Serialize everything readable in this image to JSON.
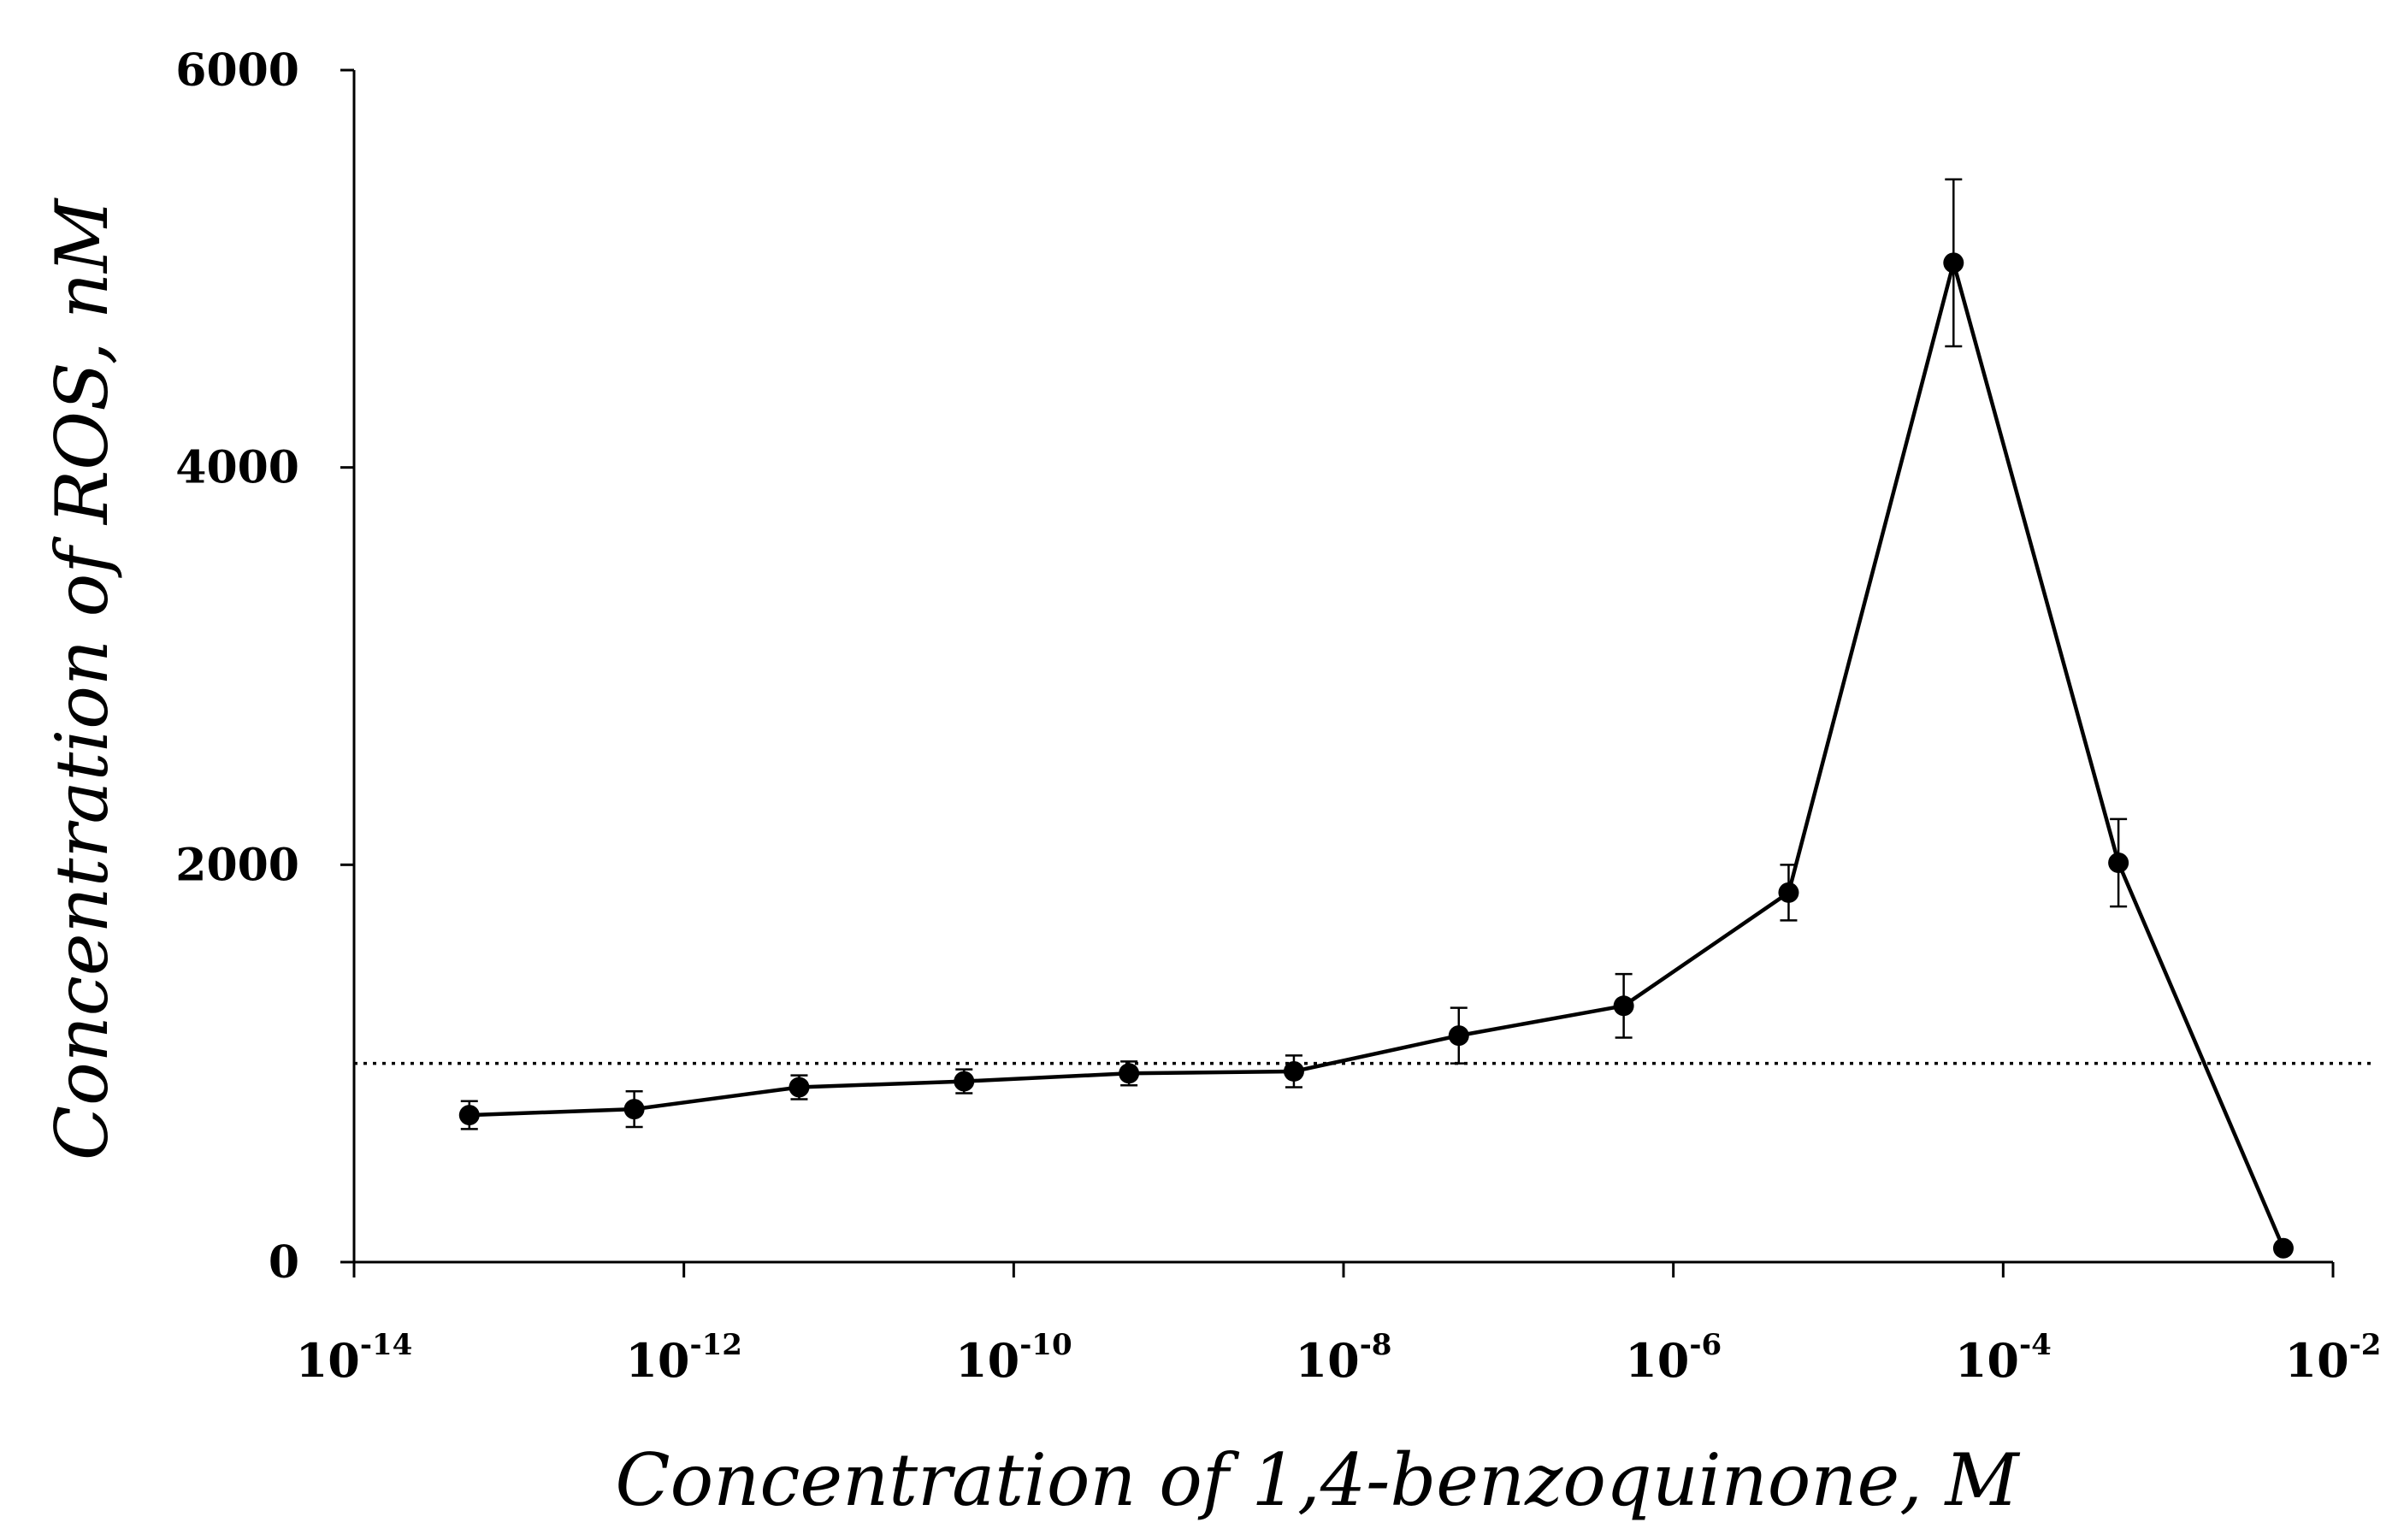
{
  "chart_data": {
    "type": "line",
    "title": "",
    "xlabel": "Concentration of 1,4-benzoquinone, M",
    "ylabel": "Concentration of ROS, nM",
    "x_scale": "log",
    "xlim": [
      1e-14,
      0.01
    ],
    "ylim": [
      0,
      6000
    ],
    "grid": false,
    "legend": "none",
    "colors": {
      "line": "#000000",
      "marker": "#000000",
      "reference_line": "#000000"
    },
    "x_ticks": [
      {
        "base": "10",
        "exp": "-14",
        "value": 1e-14
      },
      {
        "base": "10",
        "exp": "-12",
        "value": 1e-12
      },
      {
        "base": "10",
        "exp": "-10",
        "value": 1e-10
      },
      {
        "base": "10",
        "exp": "-8",
        "value": 1e-08
      },
      {
        "base": "10",
        "exp": "-6",
        "value": 1e-06
      },
      {
        "base": "10",
        "exp": "-4",
        "value": 0.0001
      },
      {
        "base": "10",
        "exp": "-2",
        "value": 0.01
      }
    ],
    "y_ticks": [
      {
        "label": "0",
        "value": 0
      },
      {
        "label": "2000",
        "value": 2000
      },
      {
        "label": "4000",
        "value": 4000
      },
      {
        "label": "6000",
        "value": 6000
      }
    ],
    "reference_line": {
      "y": 1000,
      "style": "dotted"
    },
    "series": [
      {
        "x": [
          5e-14,
          5e-13,
          5e-12,
          5e-11,
          5e-10,
          5e-09,
          5e-08,
          5e-07,
          5e-06,
          5e-05,
          0.0005,
          0.005
        ],
        "y": [
          740,
          770,
          880,
          910,
          950,
          960,
          1140,
          1290,
          1860,
          5030,
          2010,
          70
        ],
        "error": [
          70,
          90,
          60,
          60,
          60,
          80,
          140,
          160,
          140,
          420,
          220,
          0
        ]
      }
    ]
  }
}
